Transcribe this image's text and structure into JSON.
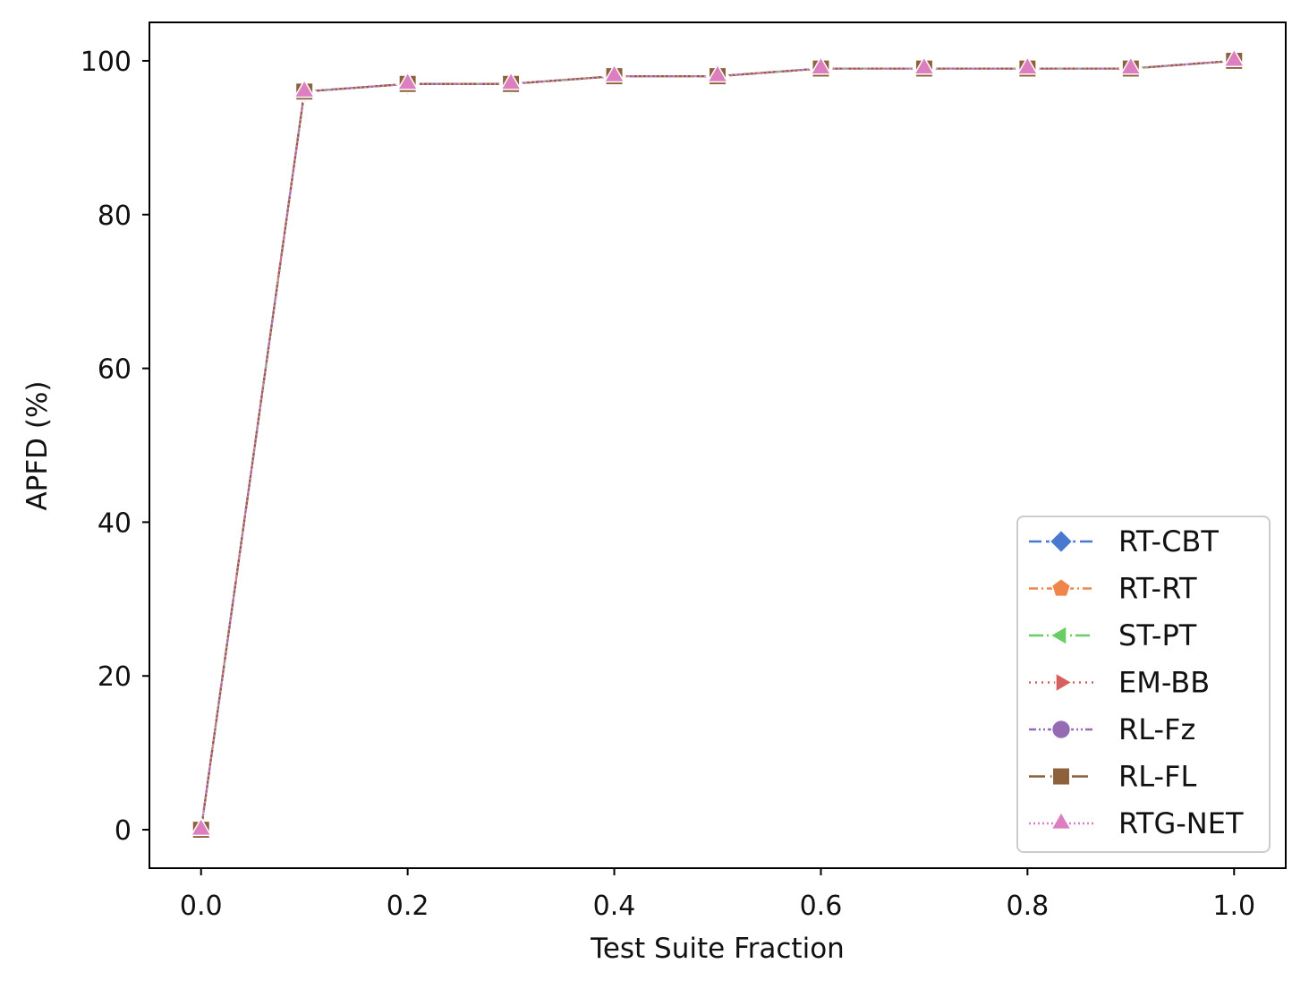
{
  "chart_data": {
    "type": "line",
    "title": "",
    "xlabel": "Test Suite Fraction",
    "ylabel": "APFD (%)",
    "xlim": [
      -0.05,
      1.05
    ],
    "ylim": [
      -5,
      105
    ],
    "xticks": [
      "0.0",
      "0.2",
      "0.4",
      "0.6",
      "0.8",
      "1.0"
    ],
    "yticks": [
      "0",
      "20",
      "40",
      "60",
      "80",
      "100"
    ],
    "grid": false,
    "legend_position": "lower-right",
    "x": [
      0.0,
      0.1,
      0.2,
      0.3,
      0.4,
      0.5,
      0.6,
      0.7,
      0.8,
      0.9,
      1.0
    ],
    "series": [
      {
        "name": "RT-CBT",
        "color": "#4878d0",
        "marker": "diamond",
        "dash": "dashed",
        "values": [
          0,
          96,
          97,
          97,
          98,
          98,
          99,
          99,
          99,
          99,
          100
        ]
      },
      {
        "name": "RT-RT",
        "color": "#ee854a",
        "marker": "pentagon",
        "dash": "dashdot",
        "values": [
          0,
          96,
          97,
          97,
          98,
          98,
          99,
          99,
          99,
          99,
          100
        ]
      },
      {
        "name": "ST-PT",
        "color": "#6acc64",
        "marker": "triangle-left",
        "dash": "longdashdot",
        "values": [
          0,
          96,
          97,
          97,
          98,
          98,
          99,
          99,
          99,
          99,
          100
        ]
      },
      {
        "name": "EM-BB",
        "color": "#d65f5f",
        "marker": "triangle-right",
        "dash": "dotted",
        "values": [
          0,
          96,
          97,
          97,
          98,
          98,
          99,
          99,
          99,
          99,
          100
        ]
      },
      {
        "name": "RL-Fz",
        "color": "#956cb4",
        "marker": "circle",
        "dash": "dashdotdot",
        "values": [
          0,
          96,
          97,
          97,
          98,
          98,
          99,
          99,
          99,
          99,
          100
        ]
      },
      {
        "name": "RL-FL",
        "color": "#8c613c",
        "marker": "square",
        "dash": "longdash",
        "values": [
          0,
          96,
          97,
          97,
          98,
          98,
          99,
          99,
          99,
          99,
          100
        ]
      },
      {
        "name": "RTG-NET",
        "color": "#dc7ec0",
        "marker": "triangle-up",
        "dash": "fine-dotted",
        "values": [
          0,
          96,
          97,
          97,
          98,
          98,
          99,
          99,
          99,
          99,
          100
        ]
      }
    ]
  }
}
